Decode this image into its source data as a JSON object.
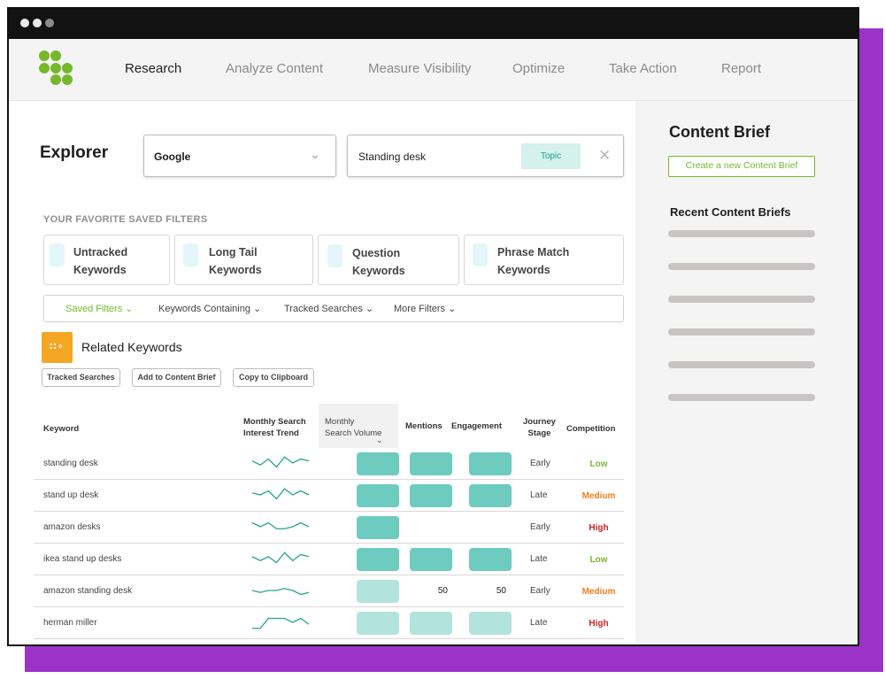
{
  "colors": {
    "brand_green": "#76b82a",
    "accent_purple": "#9b33c9",
    "teal_full": "#6ecbc0",
    "teal_light": "#b2e3dc",
    "competition_low": "#76b82a",
    "competition_medium": "#f07f1e",
    "competition_high": "#c9252c"
  },
  "nav": {
    "items": [
      "Research",
      "Analyze Content",
      "Measure Visibility",
      "Optimize",
      "Take Action",
      "Report"
    ],
    "active": "Research"
  },
  "explorer": {
    "title": "Explorer",
    "engine": "Google",
    "query": "Standing desk",
    "query_tag": "Topic"
  },
  "saved_filters": {
    "heading": "YOUR FAVORITE SAVED FILTERS",
    "cards": [
      {
        "line1": "Untracked",
        "line2": "Keywords"
      },
      {
        "line1": "Long Tail",
        "line2": "Keywords"
      },
      {
        "line1": "Question",
        "line2": "Keywords"
      },
      {
        "line1": "Phrase Match",
        "line2": "Keywords"
      }
    ]
  },
  "filter_bar": {
    "items": [
      "Saved Filters",
      "Keywords Containing",
      "Tracked Searches",
      "More Filters"
    ]
  },
  "related": {
    "title": "Related Keywords",
    "icon": "filter-bubbles-icon",
    "buttons": [
      "Tracked Searches",
      "Add to Content Brief",
      "Copy to Clipboard"
    ]
  },
  "table": {
    "headers": {
      "keyword": "Keyword",
      "trend_1": "Monthly Search",
      "trend_2": "Interest Trend",
      "volume_1": "Monthly",
      "volume_2": "Search Volume",
      "mentions": "Mentions",
      "engagement": "Engagement",
      "stage_1": "Journey",
      "stage_2": "Stage",
      "competition": "Competition"
    },
    "sorted_by": "Monthly Search Volume",
    "rows": [
      {
        "keyword": "standing desk",
        "trend": [
          3,
          5,
          2,
          6,
          1,
          4,
          2,
          3
        ],
        "volume_level": "full",
        "mentions": "full",
        "engagement": "full",
        "mentions_text": "",
        "engagement_text": "",
        "stage": "Early",
        "competition": "Low"
      },
      {
        "keyword": "stand up desk",
        "trend": [
          3,
          4,
          2,
          6,
          1,
          4,
          2,
          4
        ],
        "volume_level": "full",
        "mentions": "full",
        "engagement": "full",
        "mentions_text": "",
        "engagement_text": "",
        "stage": "Late",
        "competition": "Medium"
      },
      {
        "keyword": "amazon desks",
        "trend": [
          2,
          4,
          2,
          5,
          5,
          4,
          2,
          4
        ],
        "volume_level": "full",
        "mentions": "none",
        "engagement": "none",
        "mentions_text": "",
        "engagement_text": "",
        "stage": "Early",
        "competition": "High"
      },
      {
        "keyword": "ikea stand up desks",
        "trend": [
          3,
          5,
          3,
          6,
          1,
          5,
          2,
          3
        ],
        "volume_level": "full",
        "mentions": "full",
        "engagement": "full",
        "mentions_text": "",
        "engagement_text": "",
        "stage": "Late",
        "competition": "Low"
      },
      {
        "keyword": "amazon standing desk",
        "trend": [
          4,
          5,
          4,
          4,
          3,
          4,
          6,
          5
        ],
        "volume_level": "light",
        "mentions": "none",
        "engagement": "none",
        "mentions_text": "50",
        "engagement_text": "50",
        "stage": "Early",
        "competition": "Medium"
      },
      {
        "keyword": "herman miller",
        "trend": [
          7,
          7,
          2,
          2,
          2,
          4,
          2,
          5
        ],
        "volume_level": "light",
        "mentions": "light",
        "engagement": "light",
        "mentions_text": "",
        "engagement_text": "",
        "stage": "Late",
        "competition": "High"
      }
    ]
  },
  "content_brief": {
    "title": "Content Brief",
    "create_label": "Create a new Content Brief",
    "recent_title": "Recent Content Briefs",
    "placeholder_count": 6
  }
}
